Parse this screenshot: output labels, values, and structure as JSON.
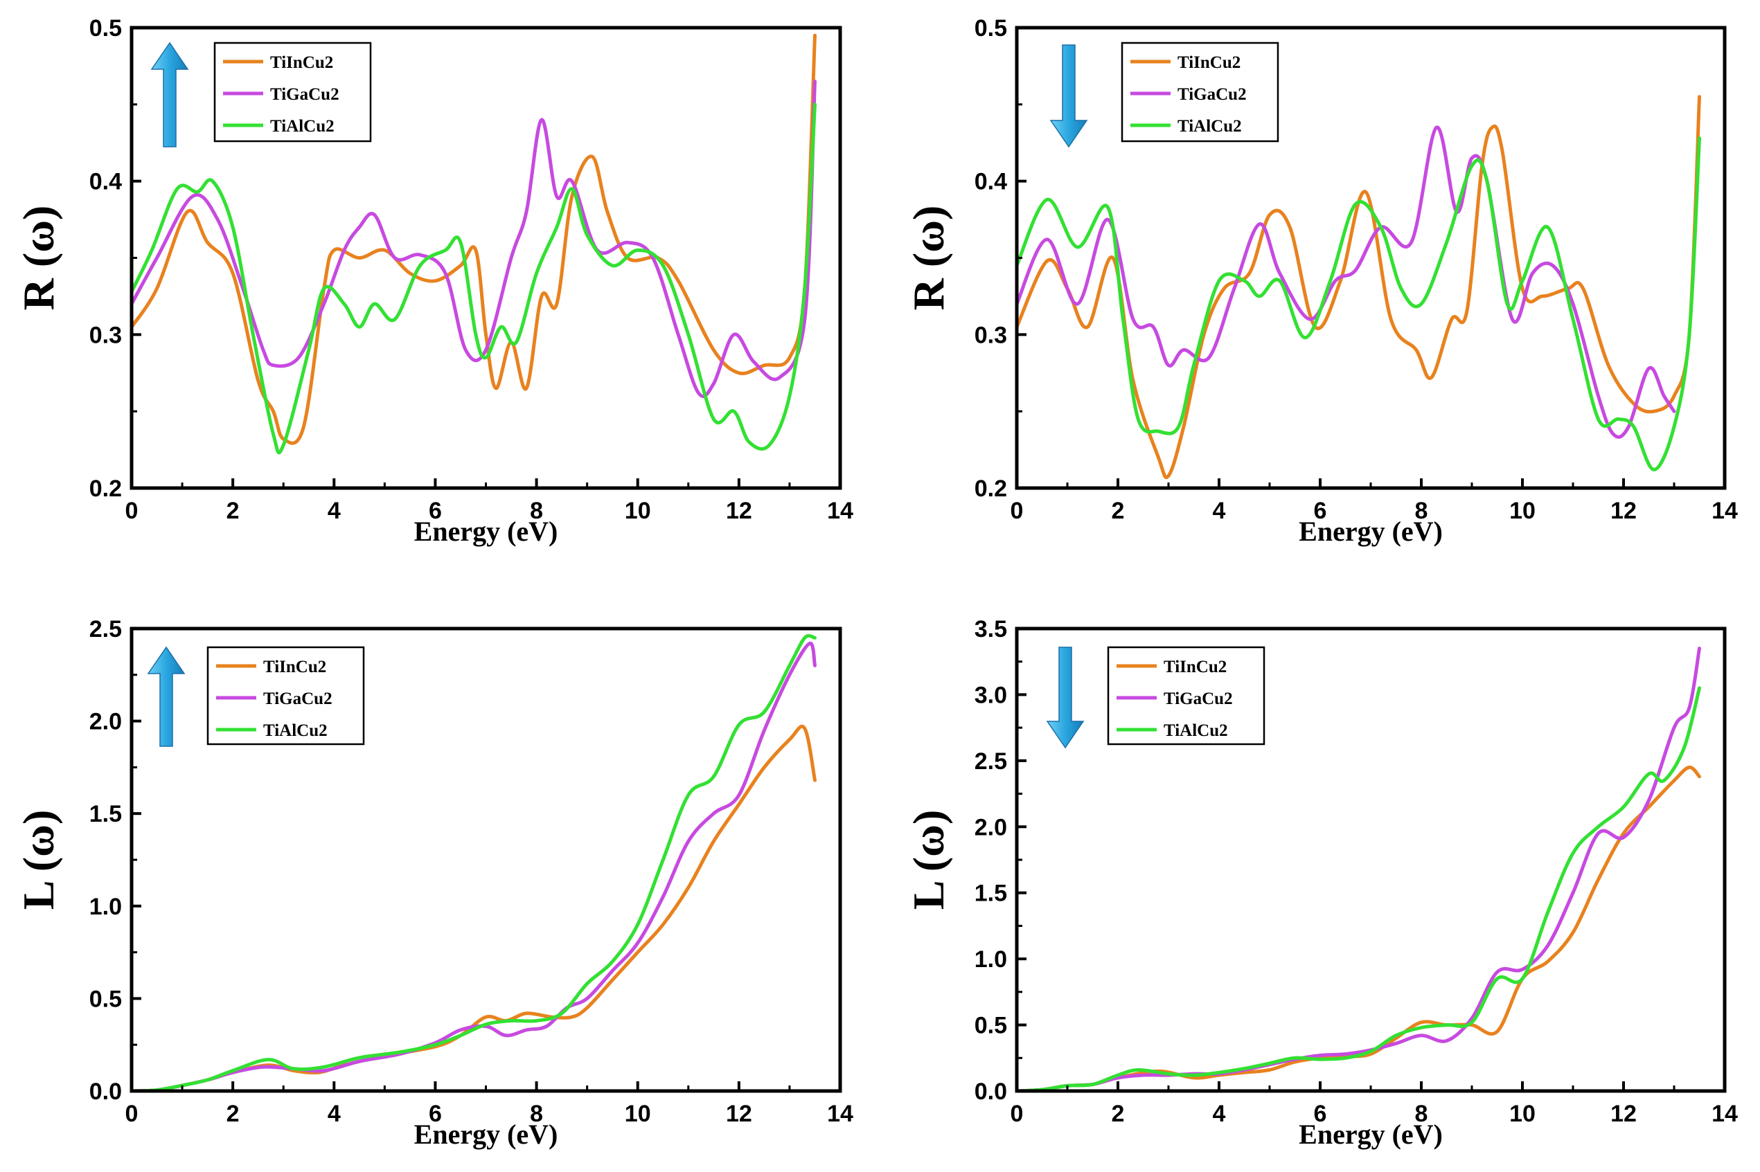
{
  "chart_data": [
    {
      "id": "R_up",
      "type": "line",
      "spin": "up",
      "xlabel": "Energy (eV)",
      "ylabel": "R (ω)",
      "xlim": [
        0,
        14
      ],
      "ylim": [
        0.2,
        0.5
      ],
      "xticks": [
        0,
        2,
        4,
        6,
        8,
        10,
        12,
        14
      ],
      "yticks": [
        0.2,
        0.3,
        0.4,
        0.5
      ],
      "ytick_labels": [
        "0.2",
        "0.3",
        "0.4",
        "0.5"
      ],
      "legend": [
        "TiInCu2",
        "TiGaCu2",
        "TiAlCu2"
      ],
      "series": [
        {
          "name": "TiInCu2",
          "color": "#e8821e",
          "x": [
            0,
            0.5,
            1.1,
            1.5,
            2,
            2.5,
            2.8,
            3.0,
            3.4,
            3.8,
            4.0,
            4.5,
            5.0,
            5.5,
            6.0,
            6.5,
            6.8,
            7.0,
            7.2,
            7.5,
            7.8,
            8.1,
            8.4,
            8.7,
            9.1,
            9.4,
            9.8,
            10.4,
            10.8,
            11.5,
            12.0,
            12.5,
            13.0,
            13.3,
            13.5
          ],
          "y": [
            0.305,
            0.33,
            0.38,
            0.36,
            0.34,
            0.27,
            0.25,
            0.232,
            0.24,
            0.33,
            0.355,
            0.35,
            0.355,
            0.34,
            0.335,
            0.345,
            0.355,
            0.3,
            0.265,
            0.295,
            0.265,
            0.325,
            0.32,
            0.39,
            0.416,
            0.38,
            0.35,
            0.35,
            0.335,
            0.29,
            0.275,
            0.28,
            0.285,
            0.33,
            0.495
          ]
        },
        {
          "name": "TiGaCu2",
          "color": "#c74ae0",
          "x": [
            0,
            0.5,
            1.2,
            1.7,
            2.2,
            2.6,
            2.8,
            3.3,
            3.8,
            4.2,
            4.5,
            4.8,
            5.2,
            5.7,
            6.2,
            6.6,
            7.0,
            7.5,
            7.8,
            8.1,
            8.4,
            8.7,
            9.2,
            9.8,
            10.3,
            10.8,
            11.2,
            11.5,
            11.9,
            12.3,
            12.8,
            13.3,
            13.5
          ],
          "y": [
            0.32,
            0.35,
            0.39,
            0.375,
            0.33,
            0.29,
            0.28,
            0.285,
            0.32,
            0.355,
            0.37,
            0.378,
            0.35,
            0.352,
            0.34,
            0.29,
            0.29,
            0.35,
            0.38,
            0.44,
            0.39,
            0.4,
            0.355,
            0.36,
            0.35,
            0.3,
            0.262,
            0.268,
            0.3,
            0.282,
            0.272,
            0.31,
            0.465
          ]
        },
        {
          "name": "TiAlCu2",
          "color": "#33e033",
          "x": [
            0,
            0.4,
            0.9,
            1.3,
            1.6,
            2.0,
            2.4,
            2.8,
            3.0,
            3.5,
            3.8,
            4.2,
            4.5,
            4.8,
            5.2,
            5.7,
            6.2,
            6.5,
            6.8,
            7.0,
            7.3,
            7.6,
            8.0,
            8.4,
            8.7,
            9.0,
            9.5,
            10.0,
            10.5,
            11.0,
            11.5,
            11.9,
            12.2,
            12.6,
            13.0,
            13.3,
            13.5
          ],
          "y": [
            0.328,
            0.355,
            0.395,
            0.393,
            0.4,
            0.37,
            0.3,
            0.235,
            0.228,
            0.29,
            0.33,
            0.32,
            0.305,
            0.32,
            0.31,
            0.345,
            0.355,
            0.36,
            0.3,
            0.285,
            0.305,
            0.295,
            0.34,
            0.37,
            0.395,
            0.365,
            0.345,
            0.355,
            0.345,
            0.3,
            0.245,
            0.25,
            0.23,
            0.228,
            0.26,
            0.33,
            0.45
          ]
        }
      ]
    },
    {
      "id": "R_down",
      "type": "line",
      "spin": "down",
      "xlabel": "Energy (eV)",
      "ylabel": "R (ω)",
      "xlim": [
        0,
        14
      ],
      "ylim": [
        0.2,
        0.5
      ],
      "xticks": [
        0,
        2,
        4,
        6,
        8,
        10,
        12,
        14
      ],
      "yticks": [
        0.2,
        0.3,
        0.4,
        0.5
      ],
      "ytick_labels": [
        "0.2",
        "0.3",
        "0.4",
        "0.5"
      ],
      "legend": [
        "TiInCu2",
        "TiGaCu2",
        "TiAlCu2"
      ],
      "series": [
        {
          "name": "TiInCu2",
          "color": "#e8821e",
          "x": [
            0,
            0.6,
            1.0,
            1.4,
            1.9,
            2.3,
            2.8,
            3.0,
            3.3,
            3.7,
            4.1,
            4.6,
            5.0,
            5.4,
            5.9,
            6.4,
            6.9,
            7.4,
            7.9,
            8.2,
            8.6,
            8.9,
            9.2,
            9.4,
            9.6,
            10.0,
            10.4,
            10.9,
            11.2,
            11.7,
            12.2,
            12.6,
            13.0,
            13.3,
            13.5
          ],
          "y": [
            0.305,
            0.348,
            0.33,
            0.305,
            0.35,
            0.27,
            0.22,
            0.208,
            0.24,
            0.3,
            0.33,
            0.34,
            0.378,
            0.37,
            0.305,
            0.335,
            0.393,
            0.31,
            0.29,
            0.272,
            0.31,
            0.315,
            0.41,
            0.435,
            0.42,
            0.33,
            0.325,
            0.33,
            0.33,
            0.28,
            0.255,
            0.25,
            0.26,
            0.3,
            0.455
          ]
        },
        {
          "name": "TiGaCu2",
          "color": "#c74ae0",
          "x": [
            0,
            0.6,
            1.2,
            1.8,
            2.3,
            2.7,
            3.0,
            3.3,
            3.8,
            4.3,
            4.8,
            5.2,
            5.8,
            6.3,
            6.7,
            7.2,
            7.8,
            8.3,
            8.7,
            9.0,
            9.3,
            9.8,
            10.2,
            10.6,
            11.0,
            11.5,
            11.8,
            12.1,
            12.5,
            12.8,
            13.0
          ],
          "y": [
            0.32,
            0.362,
            0.32,
            0.375,
            0.31,
            0.305,
            0.28,
            0.29,
            0.285,
            0.33,
            0.372,
            0.34,
            0.31,
            0.335,
            0.342,
            0.37,
            0.36,
            0.435,
            0.38,
            0.415,
            0.4,
            0.31,
            0.34,
            0.345,
            0.32,
            0.26,
            0.235,
            0.24,
            0.278,
            0.26,
            0.25
          ]
        },
        {
          "name": "TiAlCu2",
          "color": "#33e033",
          "x": [
            0,
            0.6,
            1.2,
            1.8,
            2.1,
            2.4,
            2.8,
            3.2,
            3.5,
            4.0,
            4.5,
            4.8,
            5.2,
            5.7,
            6.2,
            6.7,
            7.2,
            7.6,
            8.0,
            8.5,
            9.0,
            9.3,
            9.7,
            10.0,
            10.5,
            11.0,
            11.5,
            11.9,
            12.2,
            12.6,
            13.0,
            13.3,
            13.5
          ],
          "y": [
            0.345,
            0.388,
            0.357,
            0.383,
            0.31,
            0.245,
            0.237,
            0.24,
            0.28,
            0.335,
            0.335,
            0.325,
            0.335,
            0.298,
            0.335,
            0.385,
            0.37,
            0.33,
            0.32,
            0.36,
            0.41,
            0.4,
            0.32,
            0.335,
            0.37,
            0.31,
            0.245,
            0.245,
            0.24,
            0.212,
            0.24,
            0.3,
            0.428
          ]
        }
      ]
    },
    {
      "id": "L_up",
      "type": "line",
      "spin": "up",
      "xlabel": "Energy (eV)",
      "ylabel": "L (ω)",
      "xlim": [
        0,
        14
      ],
      "ylim": [
        0,
        2.5
      ],
      "xticks": [
        0,
        2,
        4,
        6,
        8,
        10,
        12,
        14
      ],
      "yticks": [
        0,
        0.5,
        1.0,
        1.5,
        2.0,
        2.5
      ],
      "ytick_labels": [
        "0.0",
        "0.5",
        "1.0",
        "1.5",
        "2.0",
        "2.5"
      ],
      "legend": [
        "TiInCu2",
        "TiGaCu2",
        "TiAlCu2"
      ],
      "series": [
        {
          "name": "TiInCu2",
          "color": "#e8821e",
          "x": [
            0,
            0.5,
            1.0,
            1.5,
            2.0,
            2.7,
            3.2,
            3.7,
            4.2,
            5.0,
            6.0,
            6.5,
            7.0,
            7.4,
            7.8,
            8.3,
            8.7,
            9.0,
            9.5,
            10.0,
            10.5,
            11.0,
            11.5,
            12.0,
            12.5,
            13.0,
            13.3,
            13.5
          ],
          "y": [
            0,
            0.005,
            0.03,
            0.06,
            0.1,
            0.14,
            0.11,
            0.1,
            0.14,
            0.19,
            0.24,
            0.3,
            0.4,
            0.38,
            0.42,
            0.4,
            0.4,
            0.45,
            0.6,
            0.75,
            0.9,
            1.1,
            1.35,
            1.55,
            1.75,
            1.9,
            1.96,
            1.68
          ]
        },
        {
          "name": "TiGaCu2",
          "color": "#c74ae0",
          "x": [
            0,
            0.5,
            1.0,
            1.5,
            2.0,
            2.6,
            3.2,
            3.8,
            4.5,
            5.3,
            6.0,
            6.5,
            7.0,
            7.4,
            7.8,
            8.2,
            8.6,
            9.0,
            9.5,
            10.0,
            10.5,
            11.0,
            11.5,
            12.0,
            12.5,
            13.0,
            13.4,
            13.5
          ],
          "y": [
            0,
            0.005,
            0.03,
            0.06,
            0.1,
            0.13,
            0.12,
            0.11,
            0.16,
            0.2,
            0.26,
            0.33,
            0.35,
            0.3,
            0.33,
            0.35,
            0.45,
            0.5,
            0.65,
            0.8,
            1.05,
            1.35,
            1.5,
            1.6,
            1.95,
            2.25,
            2.42,
            2.3
          ]
        },
        {
          "name": "TiAlCu2",
          "color": "#33e033",
          "x": [
            0,
            0.5,
            1.0,
            1.5,
            2.0,
            2.7,
            3.2,
            3.8,
            4.5,
            5.3,
            6.0,
            6.5,
            7.0,
            7.5,
            8.0,
            8.5,
            9.0,
            9.5,
            10.0,
            10.5,
            11.0,
            11.5,
            12.0,
            12.5,
            13.0,
            13.3,
            13.5
          ],
          "y": [
            0,
            0.005,
            0.03,
            0.06,
            0.11,
            0.17,
            0.12,
            0.13,
            0.18,
            0.21,
            0.25,
            0.3,
            0.36,
            0.38,
            0.38,
            0.42,
            0.58,
            0.7,
            0.9,
            1.25,
            1.6,
            1.7,
            1.98,
            2.05,
            2.3,
            2.45,
            2.45
          ]
        }
      ]
    },
    {
      "id": "L_down",
      "type": "line",
      "spin": "down",
      "xlabel": "Energy (eV)",
      "ylabel": "L (ω)",
      "xlim": [
        0,
        14
      ],
      "ylim": [
        0,
        3.5
      ],
      "xticks": [
        0,
        2,
        4,
        6,
        8,
        10,
        12,
        14
      ],
      "yticks": [
        0,
        0.5,
        1.0,
        1.5,
        2.0,
        2.5,
        3.0,
        3.5
      ],
      "ytick_labels": [
        "0.0",
        "0.5",
        "1.0",
        "1.5",
        "2.0",
        "2.5",
        "3.0",
        "3.5"
      ],
      "legend": [
        "TiInCu2",
        "TiGaCu2",
        "TiAlCu2"
      ],
      "series": [
        {
          "name": "TiInCu2",
          "color": "#e8821e",
          "x": [
            0,
            0.5,
            1.0,
            1.5,
            2.0,
            2.8,
            3.5,
            4.0,
            4.5,
            5.0,
            5.5,
            6.0,
            6.5,
            7.0,
            7.5,
            8.0,
            8.5,
            9.0,
            9.5,
            10.0,
            10.5,
            11.0,
            11.5,
            12.0,
            12.5,
            13.0,
            13.3,
            13.5
          ],
          "y": [
            0,
            0.01,
            0.04,
            0.05,
            0.1,
            0.15,
            0.1,
            0.12,
            0.14,
            0.16,
            0.22,
            0.25,
            0.26,
            0.28,
            0.4,
            0.52,
            0.5,
            0.5,
            0.45,
            0.85,
            0.98,
            1.2,
            1.6,
            1.95,
            2.15,
            2.35,
            2.45,
            2.38
          ]
        },
        {
          "name": "TiGaCu2",
          "color": "#c74ae0",
          "x": [
            0,
            0.5,
            1.0,
            1.5,
            2.0,
            2.5,
            3.0,
            3.5,
            4.0,
            4.5,
            5.0,
            5.5,
            6.0,
            6.5,
            7.0,
            7.5,
            8.0,
            8.5,
            9.0,
            9.5,
            10.0,
            10.5,
            11.0,
            11.5,
            12.0,
            12.5,
            13.0,
            13.3,
            13.5
          ],
          "y": [
            0,
            0.01,
            0.04,
            0.05,
            0.1,
            0.12,
            0.12,
            0.13,
            0.13,
            0.16,
            0.2,
            0.24,
            0.27,
            0.28,
            0.31,
            0.36,
            0.42,
            0.38,
            0.55,
            0.9,
            0.92,
            1.1,
            1.5,
            1.95,
            1.92,
            2.2,
            2.75,
            2.9,
            3.35
          ]
        },
        {
          "name": "TiAlCu2",
          "color": "#33e033",
          "x": [
            0,
            0.5,
            1.0,
            1.5,
            2.0,
            2.4,
            3.0,
            3.5,
            4.0,
            4.5,
            5.0,
            5.5,
            6.0,
            6.5,
            7.0,
            7.5,
            8.0,
            8.5,
            9.0,
            9.5,
            10.0,
            10.5,
            11.0,
            11.5,
            12.0,
            12.5,
            12.8,
            13.2,
            13.5
          ],
          "y": [
            0,
            0.01,
            0.04,
            0.05,
            0.12,
            0.16,
            0.13,
            0.12,
            0.14,
            0.17,
            0.21,
            0.25,
            0.24,
            0.25,
            0.3,
            0.42,
            0.48,
            0.5,
            0.52,
            0.85,
            0.85,
            1.35,
            1.8,
            2.0,
            2.15,
            2.4,
            2.35,
            2.6,
            3.05
          ]
        }
      ]
    }
  ]
}
